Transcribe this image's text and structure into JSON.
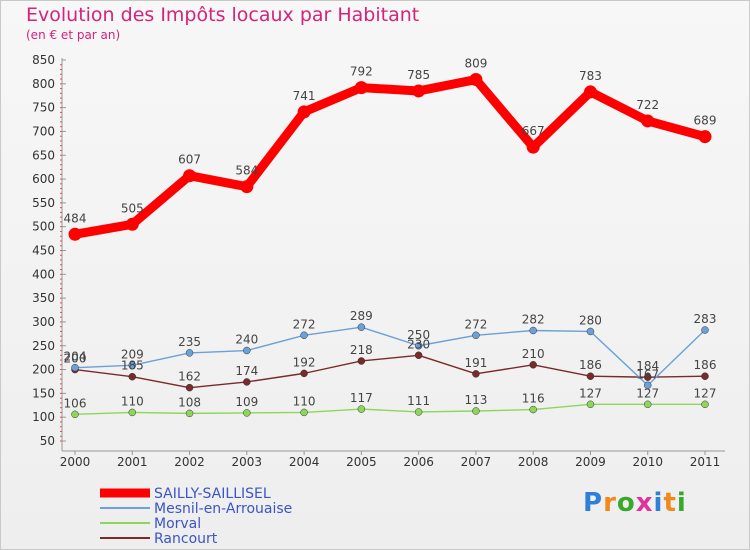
{
  "title": "Evolution des Impôts locaux par Habitant",
  "subtitle": "(en € et par an)",
  "logo_text": "Proxiti",
  "chart_data": {
    "type": "line",
    "title": "Evolution des Impôts locaux par Habitant",
    "subtitle": "(en € et par an)",
    "xlabel": "",
    "ylabel": "",
    "ylim": [
      50,
      850
    ],
    "yticks": [
      50,
      100,
      150,
      200,
      250,
      300,
      350,
      400,
      450,
      500,
      550,
      600,
      650,
      700,
      750,
      800,
      850
    ],
    "categories": [
      "2000",
      "2001",
      "2002",
      "2003",
      "2004",
      "2005",
      "2006",
      "2007",
      "2008",
      "2009",
      "2010",
      "2011"
    ],
    "grid": false,
    "legend_position": "bottom-left",
    "series": [
      {
        "name": "SAILLY-SAILLISEL",
        "color": "#ff0000",
        "values": [
          484,
          505,
          607,
          584,
          741,
          792,
          785,
          809,
          667,
          783,
          722,
          689
        ]
      },
      {
        "name": "Mesnil-en-Arrouaise",
        "color": "#6ca0d6",
        "values": [
          204,
          209,
          235,
          240,
          272,
          289,
          250,
          272,
          282,
          280,
          167,
          283
        ]
      },
      {
        "name": "Morval",
        "color": "#8ed65a",
        "values": [
          106,
          110,
          108,
          109,
          110,
          117,
          111,
          113,
          116,
          127,
          127,
          127
        ]
      },
      {
        "name": "Rancourt",
        "color": "#7a2a2a",
        "values": [
          200,
          185,
          162,
          174,
          192,
          218,
          230,
          191,
          210,
          186,
          184,
          186
        ]
      }
    ]
  }
}
